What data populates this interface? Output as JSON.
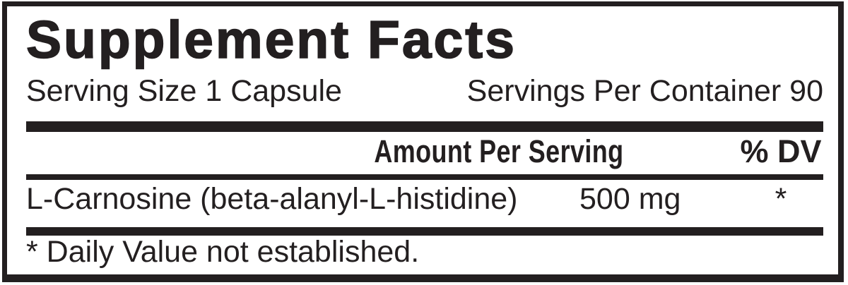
{
  "label": {
    "title": "Supplement Facts",
    "serving_size": "Serving Size 1 Capsule",
    "servings_per_container": "Servings Per Container 90",
    "header": {
      "amount": "Amount Per Serving",
      "dv": "% DV"
    },
    "rows": [
      {
        "name": "L-Carnosine (beta-alanyl-L-histidine)",
        "amount": "500 mg",
        "dv": "*"
      }
    ],
    "footnote": "* Daily Value not established.",
    "colors": {
      "ink": "#231f20",
      "background": "#ffffff"
    }
  }
}
